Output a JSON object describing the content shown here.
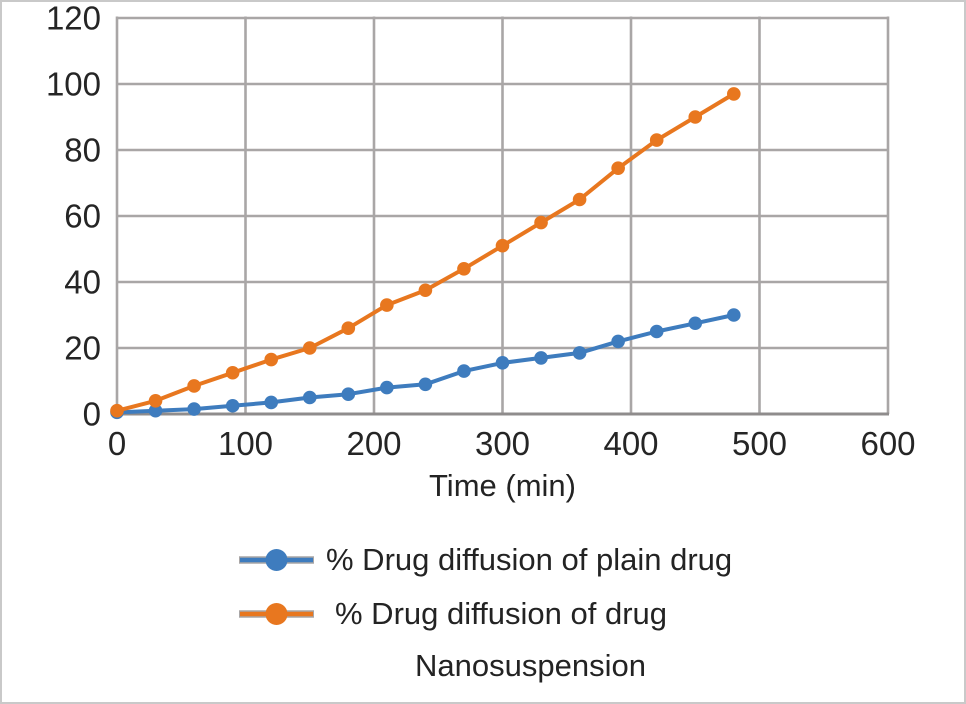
{
  "chart_data": {
    "type": "line",
    "title": "",
    "xlabel": "Time (min)",
    "ylabel": "",
    "xlim": [
      0,
      600
    ],
    "ylim": [
      0,
      120
    ],
    "x_ticks": [
      0,
      100,
      200,
      300,
      400,
      500,
      600
    ],
    "y_ticks": [
      0,
      20,
      40,
      60,
      80,
      100,
      120
    ],
    "grid": true,
    "legend_position": "bottom",
    "x": [
      0,
      30,
      60,
      90,
      120,
      150,
      180,
      210,
      240,
      270,
      300,
      330,
      360,
      390,
      420,
      450,
      480
    ],
    "series": [
      {
        "name": "% Drug diffusion of plain drug",
        "color": "#3e7cbe",
        "marker": "circle",
        "values": [
          0.5,
          1,
          1.5,
          2.5,
          3.5,
          5,
          6,
          8,
          9,
          13,
          15.5,
          17,
          18.5,
          22,
          25,
          27.5,
          30
        ]
      },
      {
        "name": "% Drug diffusion of drug Nanosuspension",
        "name_line1": "% Drug diffusion of drug",
        "name_line2": "Nanosuspension",
        "color": "#e8771f",
        "marker": "circle",
        "values": [
          1,
          4,
          8.5,
          12.5,
          16.5,
          20,
          26,
          33,
          37.5,
          44,
          51,
          58,
          65,
          74.5,
          83,
          90,
          97
        ]
      }
    ],
    "gridline_color": "#a9a6a6",
    "axis_line_color": "#8f8c8c",
    "tick_label_color": "#252525"
  }
}
